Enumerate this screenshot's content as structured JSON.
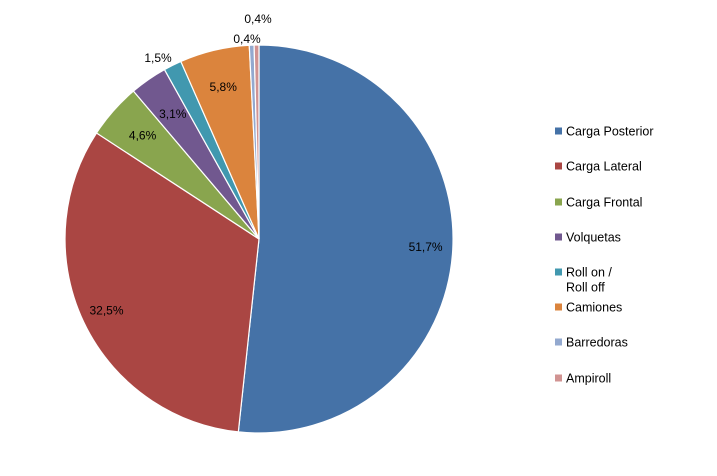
{
  "chart_data": {
    "type": "pie",
    "title": "",
    "legend_position": "right",
    "slices": [
      {
        "name": "Carga Posterior",
        "value": 51.7,
        "label": "51,7%",
        "color": "#4572A7"
      },
      {
        "name": "Carga Lateral",
        "value": 32.5,
        "label": "32,5%",
        "color": "#AA4643"
      },
      {
        "name": "Carga Frontal",
        "value": 4.6,
        "label": "4,6%",
        "color": "#89A54E"
      },
      {
        "name": "Volquetas",
        "value": 3.1,
        "label": "3,1%",
        "color": "#71588F"
      },
      {
        "name": "Roll on / Roll off",
        "name_lines": [
          "Roll on /",
          "Roll off"
        ],
        "value": 1.5,
        "label": "1,5%",
        "color": "#4198AF"
      },
      {
        "name": "Camiones",
        "value": 5.8,
        "label": "5,8%",
        "color": "#DB843D"
      },
      {
        "name": "Barredoras",
        "value": 0.4,
        "label": "0,4%",
        "color": "#93A9CF"
      },
      {
        "name": "Ampiroll",
        "value": 0.4,
        "label": "0,4%",
        "color": "#D19392"
      }
    ]
  }
}
